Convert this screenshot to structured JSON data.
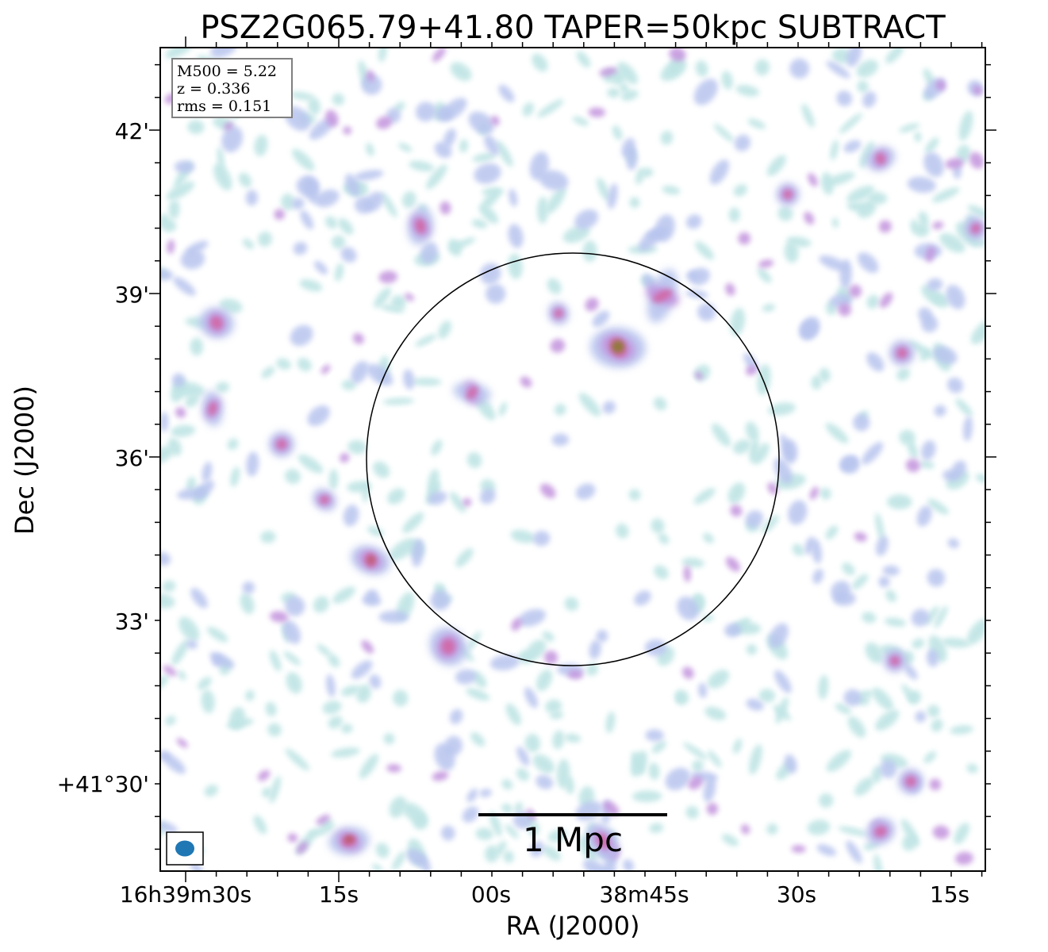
{
  "figure": {
    "title": "PSZ2G065.79+41.80 TAPER=50kpc SUBTRACT",
    "xlabel": "RA (J2000)",
    "ylabel": "Dec (J2000)",
    "ra_ticks": [
      "16h39m30s",
      "15s",
      "00s",
      "38m45s",
      "30s",
      "15s"
    ],
    "dec_ticks": [
      "42'",
      "39'",
      "36'",
      "33'",
      "+41°30'"
    ],
    "info": {
      "mass": "M500 = 5.22",
      "redshift": "z = 0.336",
      "rms": "rms = 0.151"
    },
    "scalebar_label": "1 Mpc",
    "colors": {
      "faint": "#bfe4e4",
      "low": "#b8c4ee",
      "mid": "#c293dd",
      "high": "#d06aa8",
      "peak": "#8a7a2e",
      "beam": "#1f77b4"
    }
  }
}
